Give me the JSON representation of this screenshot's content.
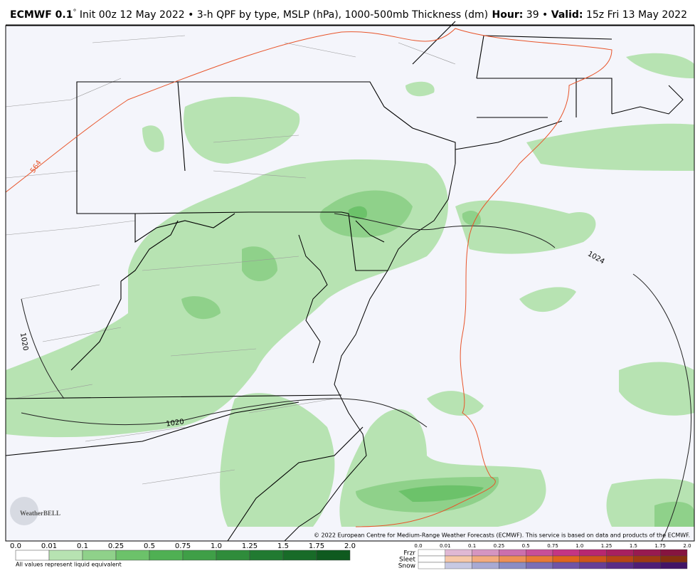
{
  "header": {
    "model": "ECMWF 0.1",
    "degree": "°",
    "description": " Init 00z 12 May 2022 • 3-h QPF by type, MSLP (hPa), 1000-500mb Thickness (dm)",
    "hour_label": "Hour:",
    "hour": " 39 • ",
    "valid_label": "Valid:",
    "valid": " 15z Fri 13 May 2022"
  },
  "map": {
    "contour_labels": [
      "564",
      "1024",
      "1020",
      "1020"
    ],
    "logo": "WeatherBELL",
    "credit": "© 2022 European Centre for Medium-Range Weather Forecasts (ECMWF). This service is based on data and products of the ECMWF."
  },
  "legend": {
    "ticks": [
      "0.0",
      "0.01",
      "0.1",
      "0.25",
      "0.5",
      "0.75",
      "1.0",
      "1.25",
      "1.5",
      "1.75",
      "2.0"
    ],
    "note": "All values represent liquid equivalent",
    "types": [
      "Frzr",
      "Sleet",
      "Snow"
    ],
    "type_ticks": [
      "0.0",
      "0.01",
      "0.1",
      "0.25",
      "0.5",
      "0.75",
      "1.0",
      "1.25",
      "1.5",
      "1.75",
      "2.0"
    ]
  }
}
